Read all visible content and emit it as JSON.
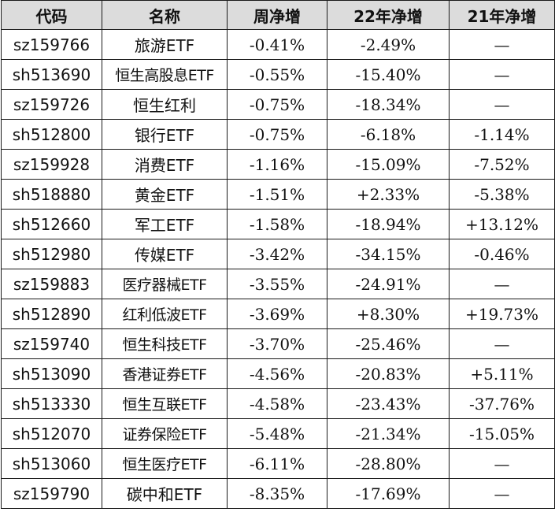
{
  "colors": {
    "negative": "#2c9a2c",
    "positive": "#e0202a",
    "header_bg": "#dcdcdc"
  },
  "headers": [
    "代码",
    "名称",
    "周净增",
    "22年净增",
    "21年净增"
  ],
  "rows": [
    {
      "code": "sz159766",
      "name": "旅游ETF",
      "week": "-0.41%",
      "y22": "-2.49%",
      "y21": "—"
    },
    {
      "code": "sh513690",
      "name": "恒生高股息ETF",
      "week": "-0.55%",
      "y22": "-15.40%",
      "y21": "—"
    },
    {
      "code": "sz159726",
      "name": "恒生红利",
      "week": "-0.75%",
      "y22": "-18.34%",
      "y21": "—"
    },
    {
      "code": "sh512800",
      "name": "银行ETF",
      "week": "-0.75%",
      "y22": "-6.18%",
      "y21": "-1.14%"
    },
    {
      "code": "sz159928",
      "name": "消费ETF",
      "week": "-1.16%",
      "y22": "-15.09%",
      "y21": "-7.52%"
    },
    {
      "code": "sh518880",
      "name": "黄金ETF",
      "week": "-1.51%",
      "y22": "+2.33%",
      "y21": "-5.38%"
    },
    {
      "code": "sh512660",
      "name": "军工ETF",
      "week": "-1.58%",
      "y22": "-18.94%",
      "y21": "+13.12%"
    },
    {
      "code": "sh512980",
      "name": "传媒ETF",
      "week": "-3.42%",
      "y22": "-34.15%",
      "y21": "-0.46%"
    },
    {
      "code": "sz159883",
      "name": "医疗器械ETF",
      "week": "-3.55%",
      "y22": "-24.91%",
      "y21": "—"
    },
    {
      "code": "sh512890",
      "name": "红利低波ETF",
      "week": "-3.69%",
      "y22": "+8.30%",
      "y21": "+19.73%"
    },
    {
      "code": "sz159740",
      "name": "恒生科技ETF",
      "week": "-3.70%",
      "y22": "-25.46%",
      "y21": "—"
    },
    {
      "code": "sh513090",
      "name": "香港证券ETF",
      "week": "-4.56%",
      "y22": "-20.83%",
      "y21": "+5.11%"
    },
    {
      "code": "sh513330",
      "name": "恒生互联ETF",
      "week": "-4.58%",
      "y22": "-23.43%",
      "y21": "-37.76%"
    },
    {
      "code": "sh512070",
      "name": "证券保险ETF",
      "week": "-5.48%",
      "y22": "-21.34%",
      "y21": "-15.05%"
    },
    {
      "code": "sh513060",
      "name": "恒生医疗ETF",
      "week": "-6.11%",
      "y22": "-28.80%",
      "y21": "—"
    },
    {
      "code": "sz159790",
      "name": "碳中和ETF",
      "week": "-8.35%",
      "y22": "-17.69%",
      "y21": "—"
    }
  ]
}
